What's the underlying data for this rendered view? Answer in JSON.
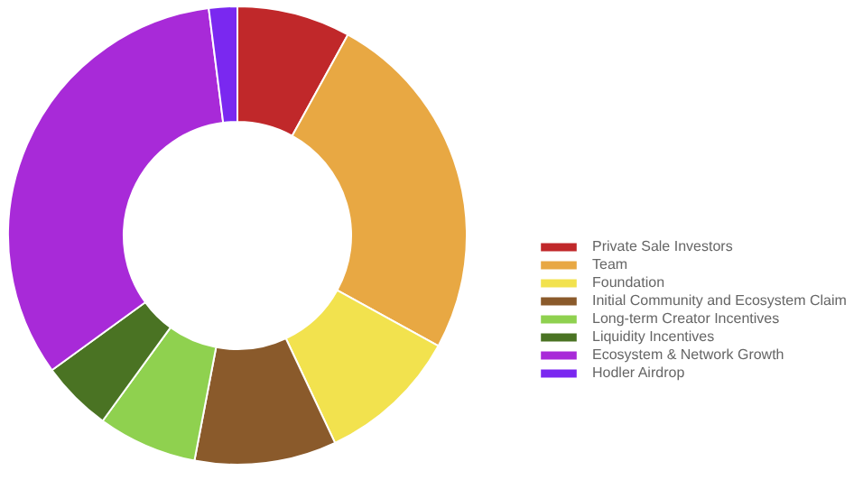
{
  "chart_data": {
    "type": "donut",
    "categories": [
      "Private Sale Investors",
      "Team",
      "Foundation",
      "Initial Community and Ecosystem Claim",
      "Long-term Creator Incentives",
      "Liquidity Incentives",
      "Ecosystem & Network Growth",
      "Hodler Airdrop"
    ],
    "values": [
      8,
      25,
      10,
      10,
      7,
      5,
      33,
      2
    ],
    "colors": [
      "#c0282a",
      "#e8a843",
      "#f2e24e",
      "#8a5a2b",
      "#8fd14f",
      "#4a7323",
      "#a82ad8",
      "#7a28f0"
    ],
    "legend": "right"
  }
}
